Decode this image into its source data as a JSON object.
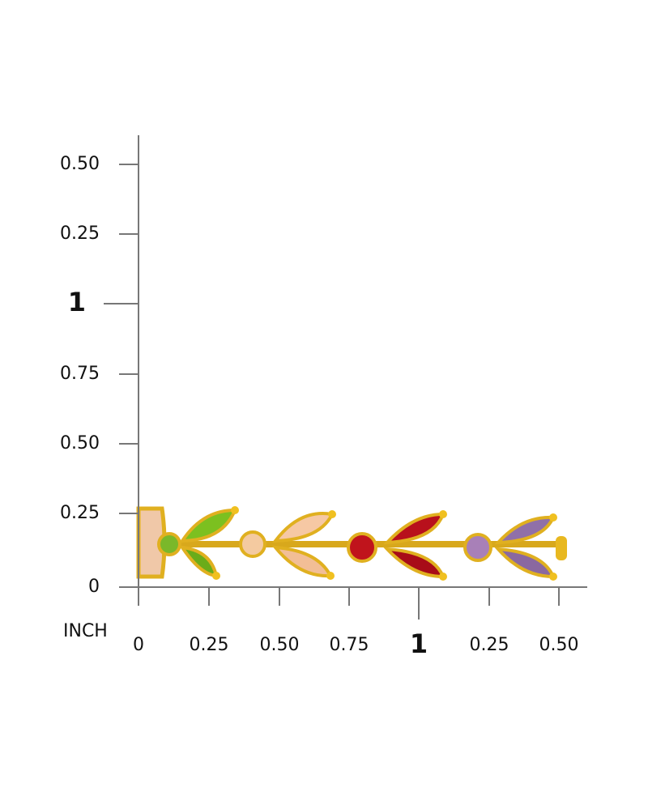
{
  "ruler": {
    "unit": "INCH",
    "vertical": [
      "0.50",
      "0.25",
      "1",
      "0.75",
      "0.50",
      "0.25",
      "0"
    ],
    "horizontal": [
      "0",
      "0.25",
      "0.50",
      "0.75",
      "1",
      "0.25",
      "0.50"
    ]
  }
}
